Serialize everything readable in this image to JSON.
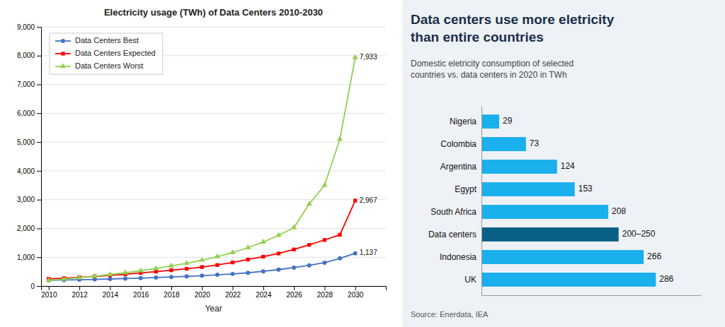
{
  "chart_data": [
    {
      "type": "line",
      "title": "Electricity usage (TWh) of Data Centers 2010-2030",
      "xlabel": "Year",
      "x": [
        2010,
        2011,
        2012,
        2013,
        2014,
        2015,
        2016,
        2017,
        2018,
        2019,
        2020,
        2021,
        2022,
        2023,
        2024,
        2025,
        2026,
        2027,
        2028,
        2029,
        2030
      ],
      "series": [
        {
          "name": "Data Centers Best",
          "color": "#4472C4",
          "marker": "circle",
          "values": [
            200,
            210,
            220,
            230,
            245,
            260,
            275,
            295,
            315,
            335,
            360,
            390,
            420,
            460,
            510,
            570,
            640,
            720,
            810,
            960,
            1137
          ],
          "value_labels": [
            null,
            null,
            null,
            null,
            null,
            null,
            null,
            null,
            null,
            null,
            null,
            null,
            null,
            null,
            null,
            null,
            null,
            null,
            null,
            null,
            "1,137"
          ]
        },
        {
          "name": "Data Centers Expected",
          "color": "#FF0000",
          "marker": "square",
          "values": [
            250,
            275,
            305,
            335,
            370,
            410,
            455,
            500,
            550,
            600,
            660,
            730,
            820,
            920,
            1020,
            1130,
            1270,
            1430,
            1600,
            1780,
            2967
          ],
          "value_labels": [
            null,
            null,
            null,
            null,
            null,
            null,
            null,
            null,
            null,
            null,
            null,
            null,
            null,
            null,
            null,
            null,
            null,
            null,
            null,
            null,
            "2,967"
          ]
        },
        {
          "name": "Data Centers Worst",
          "color": "#92D050",
          "marker": "triangle",
          "values": [
            200,
            240,
            290,
            340,
            400,
            460,
            530,
            610,
            700,
            790,
            900,
            1020,
            1160,
            1330,
            1530,
            1760,
            2030,
            2850,
            3500,
            5100,
            7933
          ],
          "value_labels": [
            null,
            null,
            null,
            null,
            null,
            null,
            null,
            null,
            null,
            null,
            null,
            null,
            null,
            null,
            null,
            null,
            null,
            null,
            null,
            null,
            "7,933"
          ]
        }
      ],
      "data_labels": true,
      "xlim": [
        2009.5,
        2032
      ],
      "xticks": [
        2010,
        2012,
        2014,
        2016,
        2018,
        2020,
        2022,
        2024,
        2026,
        2028,
        2030
      ],
      "ylim": [
        0,
        9000
      ],
      "yticks": [
        0,
        {
          "value": 1000,
          "label": "1,000"
        },
        {
          "value": 2000,
          "label": "2,000"
        },
        {
          "value": 3000,
          "label": "3,000"
        },
        {
          "value": 4000,
          "label": "4,000"
        },
        {
          "value": 5000,
          "label": "5,000"
        },
        {
          "value": 6000,
          "label": "6,000"
        },
        {
          "value": 7000,
          "label": "7,000"
        },
        {
          "value": 8000,
          "label": "8,000"
        },
        {
          "value": 9000,
          "label": "9,000"
        }
      ],
      "grid": true,
      "legend": "upper left"
    },
    {
      "type": "bar",
      "orientation": "horizontal",
      "title": "Data centers use more eletricity\nthan entire countries",
      "subtitle": "Domestic eletricity consumption of selected\ncountries vs. data centers in 2020 in TWh",
      "source": "Source: Enerdata, IEA",
      "categories": [
        "Nigeria",
        "Colombia",
        "Argentina",
        "Egypt",
        "South Africa",
        "Data centers",
        "Indonesia",
        "UK"
      ],
      "values": [
        29,
        73,
        124,
        153,
        208,
        225,
        266,
        286
      ],
      "value_labels": [
        "29",
        "73",
        "124",
        "153",
        "208",
        "200–250",
        "266",
        "286"
      ],
      "data_labels": true,
      "colors": [
        "#1AAFED",
        "#1AAFED",
        "#1AAFED",
        "#1AAFED",
        "#1AAFED",
        "#0A5F86",
        "#1AAFED",
        "#1AAFED"
      ],
      "xlim": [
        0,
        360
      ],
      "tick_labels": false
    }
  ]
}
